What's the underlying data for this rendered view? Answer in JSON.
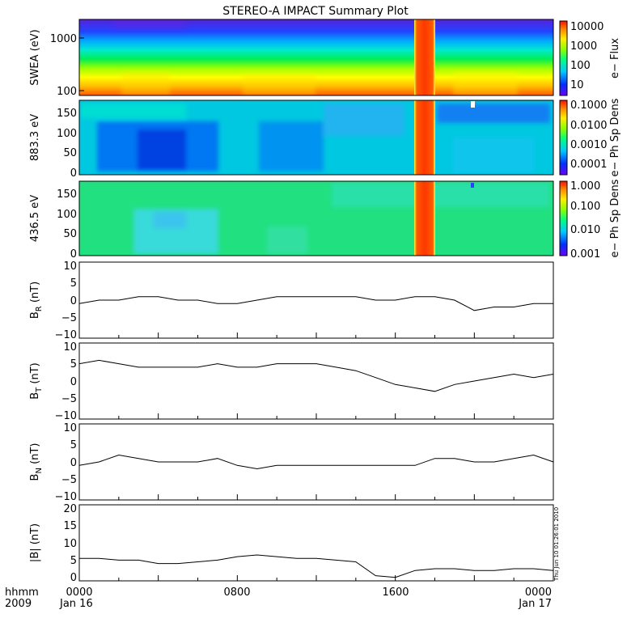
{
  "title": "STEREO-A IMPACT Summary Plot",
  "chart_data": [
    {
      "type": "heatmap",
      "ylabel": "SWEA (eV)",
      "yscale": "log",
      "ylim": [
        90,
        2000
      ],
      "ytick_labels": [
        "100",
        "1000"
      ],
      "colorbar": {
        "label": "e− Flux",
        "scale": "log",
        "range": [
          3,
          10000
        ],
        "tick_labels": [
          "10000",
          "1000",
          "100",
          "10"
        ]
      }
    },
    {
      "type": "heatmap",
      "ylabel": "883.3 eV",
      "ylim": [
        0,
        180
      ],
      "ytick_labels": [
        "0",
        "50",
        "100",
        "150"
      ],
      "colorbar": {
        "label": "e− Ph Sp Dens",
        "scale": "log",
        "range": [
          1e-05,
          0.2
        ],
        "tick_labels": [
          "0.1000",
          "0.0100",
          "0.0010",
          "0.0001"
        ]
      }
    },
    {
      "type": "heatmap",
      "ylabel": "436.5 eV",
      "ylim": [
        0,
        180
      ],
      "ytick_labels": [
        "0",
        "50",
        "100",
        "150"
      ],
      "colorbar": {
        "label": "e− Ph Sp Dens",
        "scale": "log",
        "range": [
          0.001,
          1.0
        ],
        "tick_labels": [
          "1.000",
          "0.100",
          "0.010",
          "0.001"
        ]
      }
    },
    {
      "type": "line",
      "ylabel_main": "B",
      "ylabel_sub": "R",
      "ylabel_unit": " (nT)",
      "ylim": [
        -11,
        11
      ],
      "ytick_labels": [
        "10",
        "5",
        "0",
        "−5",
        "−10"
      ],
      "x_hours": [
        0,
        1,
        2,
        3,
        4,
        5,
        6,
        7,
        8,
        9,
        10,
        11,
        12,
        13,
        14,
        15,
        16,
        17,
        18,
        19,
        20,
        21,
        22,
        23,
        24
      ],
      "values": [
        -1,
        0,
        0,
        1,
        1,
        0,
        0,
        -1,
        -1,
        0,
        1,
        1,
        1,
        1,
        1,
        0,
        0,
        1,
        1,
        0,
        -3,
        -2,
        -2,
        -1,
        -1
      ]
    },
    {
      "type": "line",
      "ylabel_main": "B",
      "ylabel_sub": "T",
      "ylabel_unit": " (nT)",
      "ylim": [
        -11,
        11
      ],
      "ytick_labels": [
        "10",
        "5",
        "0",
        "−5",
        "−10"
      ],
      "x_hours": [
        0,
        1,
        2,
        3,
        4,
        5,
        6,
        7,
        8,
        9,
        10,
        11,
        12,
        13,
        14,
        15,
        16,
        17,
        18,
        19,
        20,
        21,
        22,
        23,
        24
      ],
      "values": [
        5,
        6,
        5,
        4,
        4,
        4,
        4,
        5,
        4,
        4,
        5,
        5,
        5,
        4,
        3,
        1,
        -1,
        -2,
        -3,
        -1,
        0,
        1,
        2,
        1,
        2
      ]
    },
    {
      "type": "line",
      "ylabel_main": "B",
      "ylabel_sub": "N",
      "ylabel_unit": " (nT)",
      "ylim": [
        -11,
        11
      ],
      "ytick_labels": [
        "10",
        "5",
        "0",
        "−5",
        "−10"
      ],
      "x_hours": [
        0,
        1,
        2,
        3,
        4,
        5,
        6,
        7,
        8,
        9,
        10,
        11,
        12,
        13,
        14,
        15,
        16,
        17,
        18,
        19,
        20,
        21,
        22,
        23,
        24
      ],
      "values": [
        -1,
        0,
        2,
        1,
        0,
        0,
        0,
        1,
        -1,
        -2,
        -1,
        -1,
        -1,
        -1,
        -1,
        -1,
        -1,
        -1,
        1,
        1,
        0,
        0,
        1,
        2,
        0
      ]
    },
    {
      "type": "line",
      "ylabel": "|B| (nT)",
      "ylim": [
        -1,
        21
      ],
      "ytick_labels": [
        "20",
        "15",
        "10",
        "5",
        "0"
      ],
      "x_hours": [
        0,
        1,
        2,
        3,
        4,
        5,
        6,
        7,
        8,
        9,
        10,
        11,
        12,
        13,
        14,
        15,
        16,
        17,
        18,
        19,
        20,
        21,
        22,
        23,
        24
      ],
      "values": [
        5.5,
        5.5,
        5,
        5,
        4,
        4,
        4.5,
        5,
        6,
        6.5,
        6,
        5.5,
        5.5,
        5,
        4.5,
        0.5,
        0,
        2,
        2.5,
        2.5,
        2,
        2,
        2.5,
        2.5,
        2
      ]
    }
  ],
  "x_axis": {
    "row1_label": "hhmm",
    "row2_label": "2009",
    "tick_labels": [
      "0000",
      "0800",
      "1600",
      "0000"
    ],
    "date_labels": [
      "Jan 16",
      "Jan 17"
    ]
  },
  "timestamp_note": "Thu Jun 10 01:26:01 2010"
}
